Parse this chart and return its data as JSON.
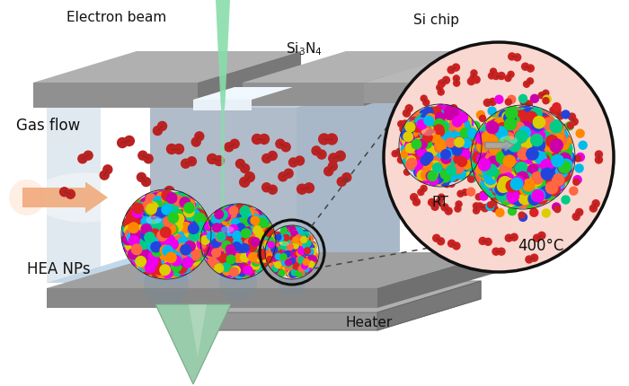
{
  "labels": {
    "electron_beam": "Electron beam",
    "si3n4": "Si$_3$N$_4$",
    "si_chip": "Si chip",
    "gas_flow": "Gas flow",
    "hea_nps": "HEA NPs",
    "heater": "Heater",
    "rt": "RT",
    "temp": "400°C"
  },
  "colors": {
    "background": "#ffffff",
    "chip_gray_top": "#b0b0b0",
    "chip_gray_face": "#959595",
    "chip_gray_dark": "#808080",
    "chamber_back": "#b8c8d4",
    "chamber_floor": "#c0d8e8",
    "chamber_left": "#c8d8e4",
    "membrane_bright": "#ddeef8",
    "electron_beam_color": "#88ddaa",
    "gas_arrow": "#f0a878",
    "o2_color": "#bb2222",
    "hea_colors": [
      "#ee00ee",
      "#00bbee",
      "#ff8800",
      "#22cc22",
      "#2244dd",
      "#dd2222",
      "#ddcc00",
      "#cc00aa",
      "#00cc88",
      "#ff6644"
    ],
    "heater_cone": "#99ccaa",
    "heater_cone_dark": "#77aa88",
    "heater_base_top": "#aaaaaa",
    "heater_base_face": "#888888",
    "heater_base_right": "#707070",
    "circle_bg": "#f8d8d0",
    "circle_border": "#111111",
    "dashed": "#555555"
  },
  "figsize": [
    7.0,
    4.3
  ],
  "dpi": 100
}
